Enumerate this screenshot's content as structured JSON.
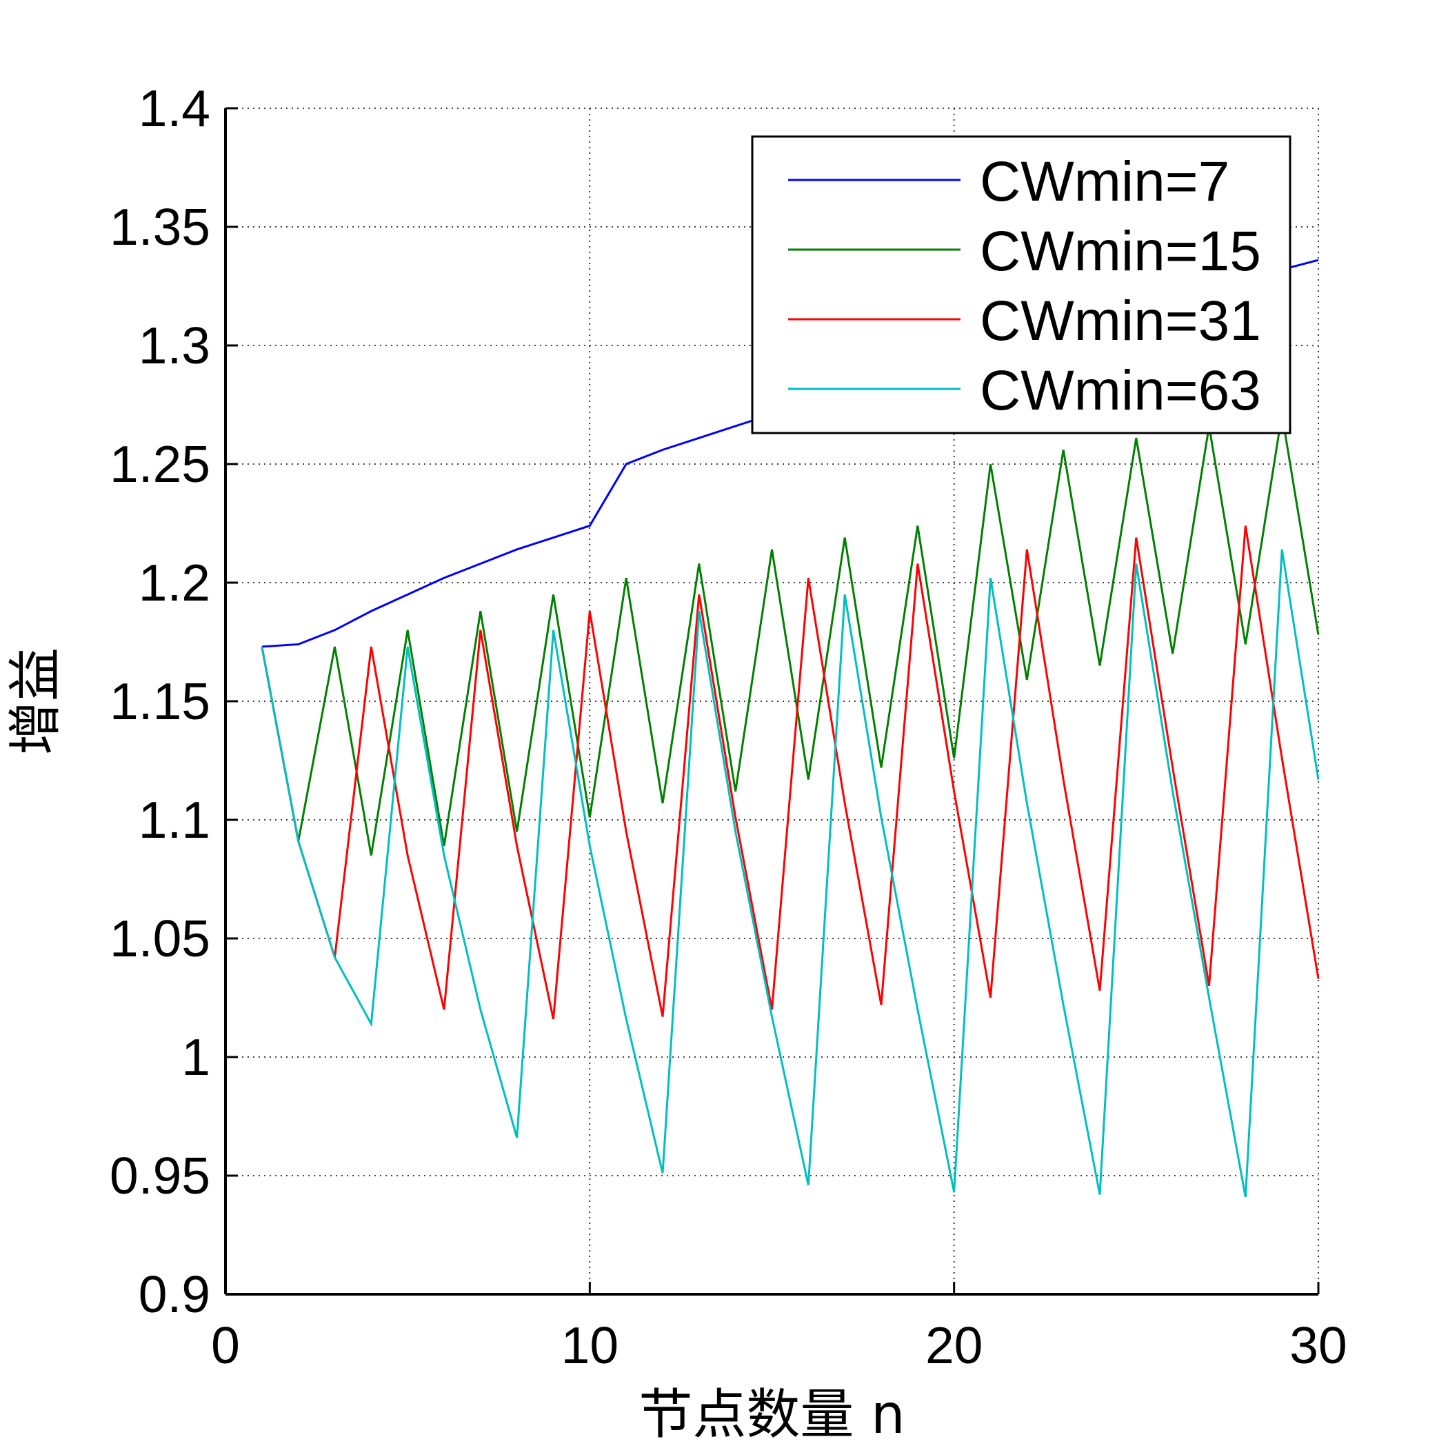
{
  "chart_data": {
    "type": "line",
    "title": "",
    "xlabel": "节点数量 n",
    "ylabel": "增益",
    "xlim": [
      0,
      30
    ],
    "ylim": [
      0.9,
      1.4
    ],
    "xticks": [
      0,
      10,
      20,
      30
    ],
    "xtick_labels": [
      "0",
      "10",
      "20",
      "30"
    ],
    "yticks": [
      0.9,
      0.95,
      1.0,
      1.05,
      1.1,
      1.15,
      1.2,
      1.25,
      1.3,
      1.35,
      1.4
    ],
    "ytick_labels": [
      "0.9",
      "0.95",
      "1",
      "1.05",
      "1.1",
      "1.15",
      "1.2",
      "1.25",
      "1.3",
      "1.35",
      "1.4"
    ],
    "grid": true,
    "legend_position": "top-right",
    "x": [
      1,
      2,
      3,
      4,
      5,
      6,
      7,
      8,
      9,
      10,
      11,
      12,
      13,
      14,
      15,
      16,
      17,
      18,
      19,
      20,
      21,
      22,
      23,
      24,
      25,
      26,
      27,
      28,
      29,
      30
    ],
    "series": [
      {
        "name": "CWmin=7",
        "color": "#0000ff",
        "values": [
          1.173,
          1.174,
          1.18,
          1.188,
          1.195,
          1.202,
          1.208,
          1.214,
          1.219,
          1.224,
          1.25,
          1.256,
          1.261,
          1.266,
          1.271,
          1.276,
          1.28,
          1.284,
          1.288,
          1.292,
          1.3,
          1.305,
          1.31,
          1.314,
          1.318,
          1.322,
          1.326,
          1.329,
          1.332,
          1.336
        ]
      },
      {
        "name": "CWmin=15",
        "color": "#008000",
        "values": [
          1.173,
          1.091,
          1.173,
          1.085,
          1.18,
          1.089,
          1.188,
          1.095,
          1.195,
          1.101,
          1.202,
          1.107,
          1.208,
          1.112,
          1.214,
          1.117,
          1.219,
          1.122,
          1.224,
          1.126,
          1.25,
          1.159,
          1.256,
          1.165,
          1.261,
          1.17,
          1.266,
          1.174,
          1.271,
          1.178
        ]
      },
      {
        "name": "CWmin=31",
        "color": "#ff0000",
        "values": [
          1.173,
          1.091,
          1.042,
          1.173,
          1.085,
          1.02,
          1.18,
          1.089,
          1.016,
          1.188,
          1.095,
          1.017,
          1.195,
          1.101,
          1.02,
          1.202,
          1.107,
          1.022,
          1.208,
          1.112,
          1.025,
          1.214,
          1.117,
          1.028,
          1.219,
          1.122,
          1.03,
          1.224,
          1.126,
          1.033
        ]
      },
      {
        "name": "CWmin=63",
        "color": "#00bfbf",
        "values": [
          1.173,
          1.091,
          1.042,
          1.014,
          1.173,
          1.085,
          1.02,
          0.966,
          1.18,
          1.089,
          1.016,
          0.951,
          1.188,
          1.095,
          1.017,
          0.946,
          1.195,
          1.101,
          1.02,
          0.943,
          1.202,
          1.107,
          1.022,
          0.942,
          1.208,
          1.112,
          1.025,
          0.941,
          1.214,
          1.117
        ]
      }
    ]
  }
}
